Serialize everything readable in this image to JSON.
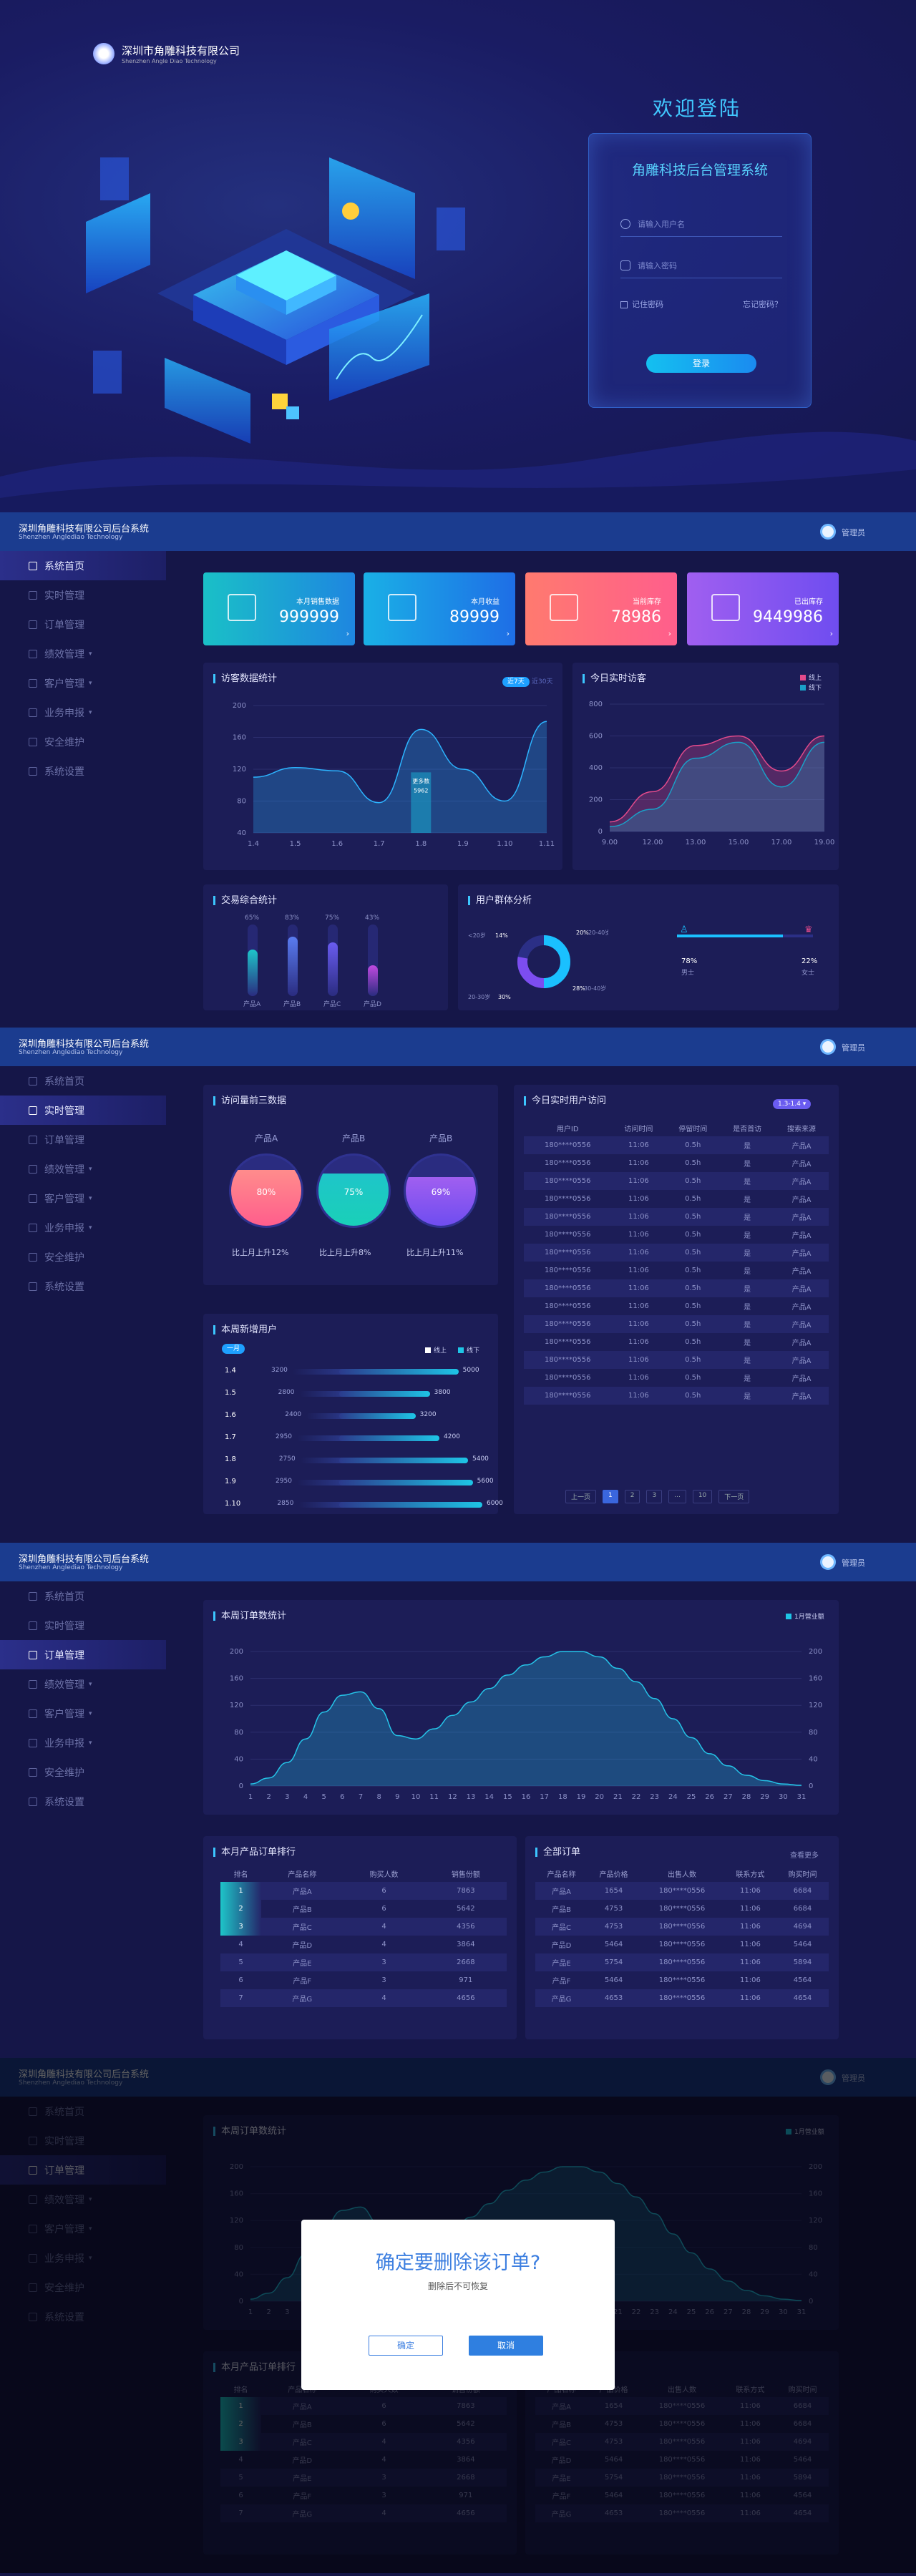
{
  "company": {
    "name": "深圳市角雕科技有限公司",
    "name_en": "Shenzhen Angle Diao Technology"
  },
  "login": {
    "welcome": "欢迎登陆",
    "system": "角雕科技后台管理系统",
    "user_ph": "请输入用户名",
    "pwd_ph": "请输入密码",
    "remember": "记住密码",
    "forgot": "忘记密码？",
    "button": "登录"
  },
  "header": {
    "title": "深圳角雕科技有限公司后台系统",
    "title_en": "Shenzhen Anglediao Technology",
    "user": "管理员"
  },
  "nav": [
    "系统首页",
    "实时管理",
    "订单管理",
    "绩效管理",
    "客户管理",
    "业务申报",
    "安全维护",
    "系统设置"
  ],
  "nav_dropdown": [
    false,
    false,
    false,
    true,
    true,
    true,
    false,
    false
  ],
  "home": {
    "stats": [
      {
        "label": "本月销售数据",
        "value": "999999",
        "colors": [
          "#1ac0c7",
          "#1e86e0"
        ],
        "icon": "trend-icon"
      },
      {
        "label": "本月收益",
        "value": "89999",
        "colors": [
          "#1ab0e6",
          "#1e6ee6"
        ],
        "icon": "image-icon"
      },
      {
        "label": "当前库存",
        "value": "78986",
        "colors": [
          "#ff7a6f",
          "#ff5e8c"
        ],
        "icon": "mail-icon"
      },
      {
        "label": "已出库存",
        "value": "9449986",
        "colors": [
          "#a05ff0",
          "#6f4df0"
        ],
        "icon": "calendar-icon"
      }
    ],
    "visit": {
      "title": "访客数据统计",
      "tabs": [
        "近7天",
        "近30天"
      ],
      "tooltip_label": "更多数",
      "tooltip_value": "5962"
    },
    "today": {
      "title": "今日实时访客",
      "legend": [
        "线上",
        "线下"
      ]
    },
    "trade": {
      "title": "交易综合统计",
      "products": [
        {
          "name": "产品A",
          "pct": "65%",
          "value": 65
        },
        {
          "name": "产品B",
          "pct": "83%",
          "value": 83
        },
        {
          "name": "产品C",
          "pct": "75%",
          "value": 75
        },
        {
          "name": "产品D",
          "pct": "43%",
          "value": 43
        }
      ]
    },
    "users": {
      "title": "用户群体分析",
      "labels": [
        "<20岁",
        "14%",
        "20%",
        "20-40岁",
        "28%",
        "30-40岁",
        "20-30岁",
        "30%"
      ],
      "male_pct": "78%",
      "male": "男士",
      "female_pct": "22%",
      "female": "女士"
    }
  },
  "realtime": {
    "top3": {
      "title": "访问量前三数据",
      "items": [
        {
          "name": "产品A",
          "pct": "80%",
          "value": 80,
          "note": "比上月上升12%"
        },
        {
          "name": "产品B",
          "pct": "75%",
          "value": 75,
          "note": "比上月上升8%"
        },
        {
          "name": "产品B",
          "pct": "69%",
          "value": 69,
          "note": "比上月上升11%"
        }
      ]
    },
    "week": {
      "title": "本周新增用户",
      "tab": "一月",
      "legend": [
        "线上",
        "线下"
      ],
      "rows": [
        {
          "date": "1.4",
          "a": 3200,
          "b": 5000
        },
        {
          "date": "1.5",
          "a": 2800,
          "b": 3800
        },
        {
          "date": "1.6",
          "a": 2400,
          "b": 3200
        },
        {
          "date": "1.7",
          "a": 2950,
          "b": 4200
        },
        {
          "date": "1.8",
          "a": 2750,
          "b": 5400
        },
        {
          "date": "1.9",
          "a": 2950,
          "b": 5600
        },
        {
          "date": "1.10",
          "a": 2850,
          "b": 6000
        }
      ]
    },
    "visitors": {
      "title": "今日实时用户访问",
      "dropdown": "1.3-1.4 ▾",
      "cols": [
        "用户ID",
        "访问时间",
        "停留时间",
        "是否首访",
        "搜索来源"
      ],
      "rows": [
        [
          "180****0556",
          "11:06",
          "0.5h",
          "是",
          "产品A"
        ],
        [
          "180****0556",
          "11:06",
          "0.5h",
          "是",
          "产品A"
        ],
        [
          "180****0556",
          "11:06",
          "0.5h",
          "是",
          "产品A"
        ],
        [
          "180****0556",
          "11:06",
          "0.5h",
          "是",
          "产品A"
        ],
        [
          "180****0556",
          "11:06",
          "0.5h",
          "是",
          "产品A"
        ],
        [
          "180****0556",
          "11:06",
          "0.5h",
          "是",
          "产品A"
        ],
        [
          "180****0556",
          "11:06",
          "0.5h",
          "是",
          "产品A"
        ],
        [
          "180****0556",
          "11:06",
          "0.5h",
          "是",
          "产品A"
        ],
        [
          "180****0556",
          "11:06",
          "0.5h",
          "是",
          "产品A"
        ],
        [
          "180****0556",
          "11:06",
          "0.5h",
          "是",
          "产品A"
        ],
        [
          "180****0556",
          "11:06",
          "0.5h",
          "是",
          "产品A"
        ],
        [
          "180****0556",
          "11:06",
          "0.5h",
          "是",
          "产品A"
        ],
        [
          "180****0556",
          "11:06",
          "0.5h",
          "是",
          "产品A"
        ],
        [
          "180****0556",
          "11:06",
          "0.5h",
          "是",
          "产品A"
        ],
        [
          "180****0556",
          "11:06",
          "0.5h",
          "是",
          "产品A"
        ]
      ],
      "pager": [
        "上一页",
        "1",
        "2",
        "3",
        "...",
        "10",
        "下一页"
      ]
    }
  },
  "orders": {
    "chart": {
      "title": "本周订单数统计",
      "legend": "1月营业额"
    },
    "rank": {
      "title": "本月产品订单排行",
      "cols": [
        "排名",
        "产品名称",
        "购买人数",
        "销售份额"
      ],
      "rows": [
        [
          "1",
          "产品A",
          "6",
          "7863"
        ],
        [
          "2",
          "产品B",
          "6",
          "5642"
        ],
        [
          "3",
          "产品C",
          "4",
          "4356"
        ],
        [
          "4",
          "产品D",
          "4",
          "3864"
        ],
        [
          "5",
          "产品E",
          "3",
          "2668"
        ],
        [
          "6",
          "产品F",
          "3",
          "971"
        ],
        [
          "7",
          "产品G",
          "4",
          "4656"
        ]
      ]
    },
    "all": {
      "title": "全部订单",
      "more": "查看更多",
      "cols": [
        "产品名称",
        "产品价格",
        "出售人数",
        "联系方式",
        "购买时间"
      ],
      "rows": [
        [
          "产品A",
          "1654",
          "180****0556",
          "11:06",
          "6684"
        ],
        [
          "产品B",
          "4753",
          "180****0556",
          "11:06",
          "6684"
        ],
        [
          "产品C",
          "4753",
          "180****0556",
          "11:06",
          "4694"
        ],
        [
          "产品D",
          "5464",
          "180****0556",
          "11:06",
          "5464"
        ],
        [
          "产品E",
          "5754",
          "180****0556",
          "11:06",
          "5894"
        ],
        [
          "产品F",
          "5464",
          "180****0556",
          "11:06",
          "4564"
        ],
        [
          "产品G",
          "4653",
          "180****0556",
          "11:06",
          "4654"
        ]
      ]
    }
  },
  "modal": {
    "title": "确定要删除该订单?",
    "subtitle": "删除后不可恢复",
    "confirm": "确定",
    "cancel": "取消"
  },
  "chart_data": [
    {
      "type": "area",
      "title": "访客数据统计",
      "categories": [
        "1.4",
        "1.5",
        "1.6",
        "1.7",
        "1.8",
        "1.9",
        "1.10",
        "1.11"
      ],
      "values": [
        110,
        122,
        118,
        78,
        170,
        120,
        80,
        180
      ],
      "ylim": [
        40,
        200
      ],
      "yticks": [
        40,
        80,
        120,
        160,
        200
      ]
    },
    {
      "type": "area",
      "title": "今日实时访客",
      "categories": [
        "9.00",
        "12.00",
        "13.00",
        "15.00",
        "17.00",
        "19.00"
      ],
      "series": [
        {
          "name": "线上",
          "values": [
            60,
            250,
            540,
            600,
            380,
            600
          ]
        },
        {
          "name": "线下",
          "values": [
            30,
            140,
            460,
            560,
            280,
            560
          ]
        }
      ],
      "ylim": [
        0,
        800
      ],
      "yticks": [
        0,
        200,
        400,
        600,
        800
      ]
    },
    {
      "type": "area",
      "title": "本周订单数统计",
      "categories": [
        "1",
        "2",
        "3",
        "4",
        "5",
        "6",
        "7",
        "8",
        "9",
        "10",
        "11",
        "12",
        "13",
        "14",
        "15",
        "16",
        "17",
        "18",
        "19",
        "20",
        "21",
        "22",
        "23",
        "24",
        "25",
        "26",
        "27",
        "28",
        "29",
        "30",
        "31"
      ],
      "series": [
        {
          "name": "1月营业额",
          "values": [
            3,
            12,
            35,
            70,
            110,
            135,
            140,
            115,
            75,
            70,
            85,
            105,
            125,
            145,
            165,
            180,
            192,
            200,
            200,
            192,
            175,
            155,
            130,
            100,
            72,
            48,
            30,
            16,
            8,
            3,
            1
          ]
        }
      ],
      "ylim": [
        0,
        200
      ],
      "yticks": [
        0,
        40,
        80,
        120,
        160,
        200
      ]
    }
  ]
}
